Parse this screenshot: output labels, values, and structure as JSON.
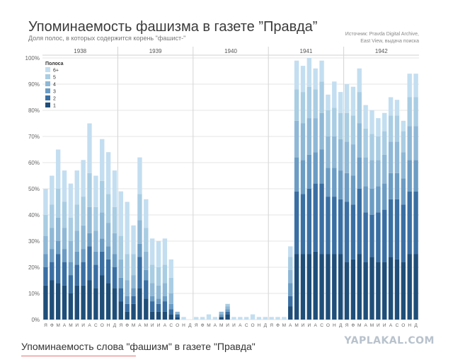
{
  "header": {
    "title": "Упоминаемость фашизма в газете ”Правда”",
    "subtitle": "Доля полос, в которых содержится корень \"фашист-\"",
    "source_line1": "Источник: Pravda Digital Archive,",
    "source_line2": "East View, выдача поиска"
  },
  "caption": "Упоминаемость слова \"фашизм\" в газете \"Правда\"",
  "watermark": "YAPLAKAL.COM",
  "colors": {
    "layer1": "#1f4e79",
    "layer2": "#3a6fa3",
    "layer3": "#6b9cc4",
    "layer4": "#8fb8d6",
    "layer5": "#a9cde3",
    "layer6": "#c3def0"
  },
  "chart_data": {
    "type": "bar",
    "stacked": true,
    "years": [
      "1938",
      "1939",
      "1940",
      "1941",
      "1942"
    ],
    "months": [
      "Я",
      "Ф",
      "М",
      "А",
      "М",
      "И",
      "И",
      "А",
      "С",
      "О",
      "Н",
      "Д",
      "Я",
      "Ф",
      "М",
      "А",
      "М",
      "И",
      "И",
      "А",
      "С",
      "О",
      "Н",
      "Д",
      "Я",
      "Ф",
      "М",
      "А",
      "М",
      "И",
      "И",
      "А",
      "С",
      "О",
      "Н",
      "Д",
      "Я",
      "Ф",
      "М",
      "А",
      "М",
      "И",
      "И",
      "А",
      "С",
      "О",
      "Н",
      "Д",
      "Я",
      "Ф",
      "М",
      "А",
      "М",
      "И",
      "И",
      "А",
      "С",
      "О",
      "Н",
      "Д"
    ],
    "legend_title": "Полоса",
    "legend": [
      "6+",
      "5",
      "4",
      "3",
      "2",
      "1"
    ],
    "y_ticks": [
      "0%",
      "10%",
      "20%",
      "30%",
      "40%",
      "50%",
      "60%",
      "70%",
      "80%",
      "90%",
      "100%"
    ],
    "ylim": [
      0,
      100
    ],
    "grid": true,
    "legend_position": "top-left",
    "totals": [
      50,
      55,
      65,
      57,
      52,
      57,
      61,
      75,
      55,
      69,
      64,
      57,
      49,
      45,
      36,
      62,
      46,
      31,
      30,
      31,
      23,
      3,
      1,
      0,
      1,
      1,
      2,
      1,
      3,
      6,
      1,
      1,
      1,
      2,
      1,
      1,
      1,
      1,
      1,
      28,
      99,
      97,
      100,
      96,
      99,
      86,
      91,
      87,
      90,
      89,
      96,
      82,
      80,
      77,
      79,
      85,
      84,
      76,
      94,
      94
    ],
    "layer1": [
      13,
      15,
      14,
      13,
      10,
      13,
      13,
      15,
      12,
      17,
      14,
      12,
      7,
      3,
      6,
      12,
      8,
      3,
      3,
      3,
      2,
      1,
      0,
      0,
      0,
      0,
      0,
      0,
      1,
      2,
      0,
      0,
      0,
      0,
      0,
      0,
      0,
      0,
      0,
      5,
      25,
      25,
      25,
      26,
      25,
      25,
      25,
      25,
      22,
      23,
      25,
      22,
      24,
      22,
      22,
      24,
      23,
      22,
      25,
      25
    ],
    "layer2": [
      7,
      7,
      11,
      9,
      7,
      8,
      9,
      13,
      9,
      9,
      9,
      8,
      5,
      3,
      3,
      12,
      7,
      4,
      3,
      4,
      2,
      1,
      0,
      0,
      0,
      0,
      0,
      0,
      0,
      1,
      0,
      0,
      0,
      0,
      0,
      0,
      0,
      0,
      0,
      4,
      24,
      23,
      25,
      26,
      27,
      22,
      22,
      21,
      23,
      21,
      25,
      19,
      16,
      19,
      20,
      22,
      23,
      22,
      24,
      24
    ],
    "layer3": [
      5,
      5,
      5,
      5,
      5,
      5,
      5,
      5,
      5,
      5,
      5,
      5,
      4,
      3,
      3,
      5,
      4,
      2,
      2,
      2,
      2,
      0,
      0,
      0,
      0,
      0,
      0,
      0,
      1,
      1,
      0,
      0,
      0,
      0,
      0,
      0,
      0,
      0,
      0,
      5,
      13,
      13,
      13,
      12,
      13,
      11,
      11,
      11,
      11,
      11,
      12,
      10,
      10,
      10,
      10,
      10,
      10,
      10,
      12,
      12
    ],
    "layer4": [
      7,
      8,
      9,
      8,
      8,
      8,
      9,
      10,
      8,
      10,
      9,
      8,
      7,
      6,
      5,
      9,
      7,
      5,
      5,
      5,
      4,
      1,
      0,
      0,
      0,
      0,
      0,
      0,
      1,
      1,
      0,
      0,
      0,
      0,
      0,
      0,
      0,
      0,
      0,
      5,
      14,
      14,
      14,
      13,
      14,
      12,
      12,
      12,
      12,
      12,
      13,
      11,
      11,
      10,
      11,
      12,
      12,
      10,
      13,
      13
    ],
    "layer5": [
      8,
      9,
      11,
      10,
      9,
      10,
      11,
      13,
      9,
      12,
      11,
      10,
      9,
      10,
      8,
      10,
      9,
      7,
      7,
      7,
      6,
      0,
      0,
      0,
      0,
      0,
      0,
      0,
      0,
      1,
      0,
      0,
      0,
      0,
      0,
      0,
      0,
      0,
      0,
      5,
      12,
      12,
      12,
      11,
      12,
      10,
      11,
      10,
      11,
      11,
      12,
      11,
      10,
      9,
      9,
      10,
      10,
      8,
      11,
      11
    ],
    "layer6": [
      10,
      11,
      15,
      12,
      13,
      13,
      14,
      19,
      12,
      16,
      16,
      14,
      17,
      20,
      11,
      14,
      11,
      10,
      10,
      10,
      7,
      0,
      1,
      0,
      1,
      1,
      2,
      1,
      0,
      0,
      1,
      1,
      1,
      2,
      1,
      1,
      1,
      1,
      1,
      4,
      11,
      10,
      11,
      8,
      8,
      6,
      10,
      8,
      11,
      11,
      9,
      9,
      9,
      7,
      7,
      7,
      6,
      4,
      9,
      9
    ]
  }
}
